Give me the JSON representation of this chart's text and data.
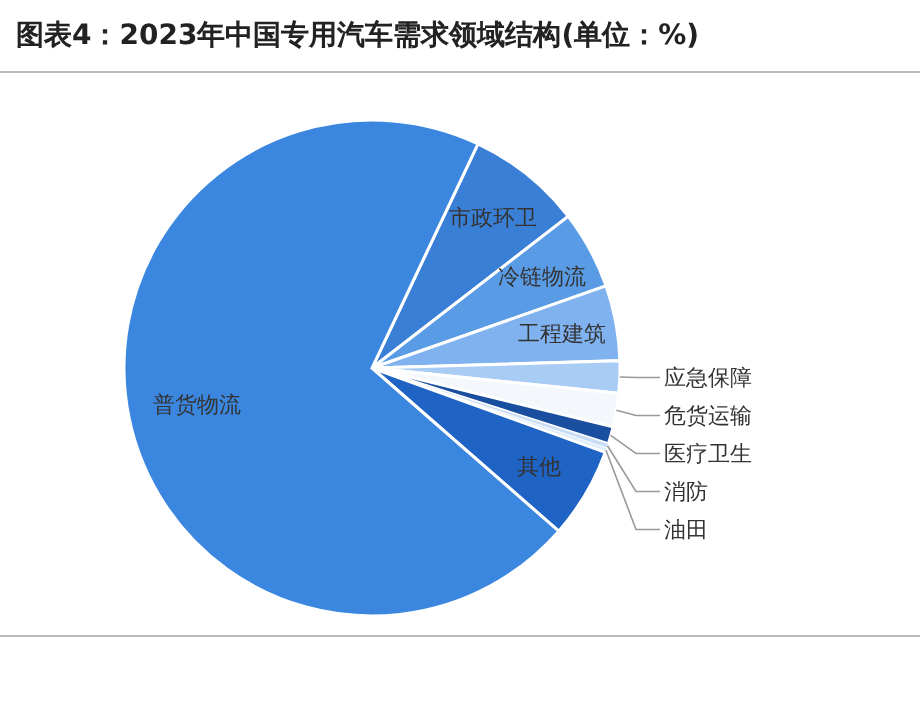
{
  "chart_data": {
    "type": "pie",
    "title": "图表4：2023年中国专用汽车需求领域结构(单位：%)",
    "categories": [
      "市政环卫",
      "冷链物流",
      "工程建筑",
      "应急保障",
      "危货运输",
      "医疗卫生",
      "消防",
      "油田",
      "其他",
      "普货物流"
    ],
    "values": [
      7.5,
      5.1,
      4.9,
      2.1,
      2.2,
      1.1,
      0.3,
      0.3,
      5.9,
      70.6
    ],
    "colors": [
      "#3a7fd6",
      "#5a9be6",
      "#7fb2ef",
      "#a9ccf5",
      "#f4f8fd",
      "#1a4fa0",
      "#c8dcf5",
      "#e0ecfa",
      "#1f63c4",
      "#3b87e0"
    ],
    "legend": false
  }
}
